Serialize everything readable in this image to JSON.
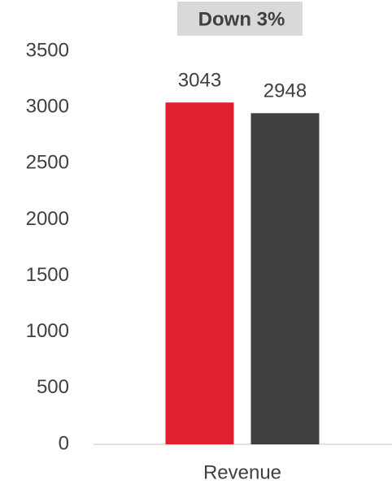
{
  "chart_data": {
    "type": "bar",
    "annotation": "Down 3%",
    "categories": [
      "Revenue"
    ],
    "series": [
      {
        "color": "#e0202e",
        "values": [
          3043
        ]
      },
      {
        "color": "#404040",
        "values": [
          2948
        ]
      }
    ],
    "ylim": [
      0,
      3500
    ],
    "yticks": [
      0,
      500,
      1000,
      1500,
      2000,
      2500,
      3000,
      3500
    ],
    "grid": false
  }
}
